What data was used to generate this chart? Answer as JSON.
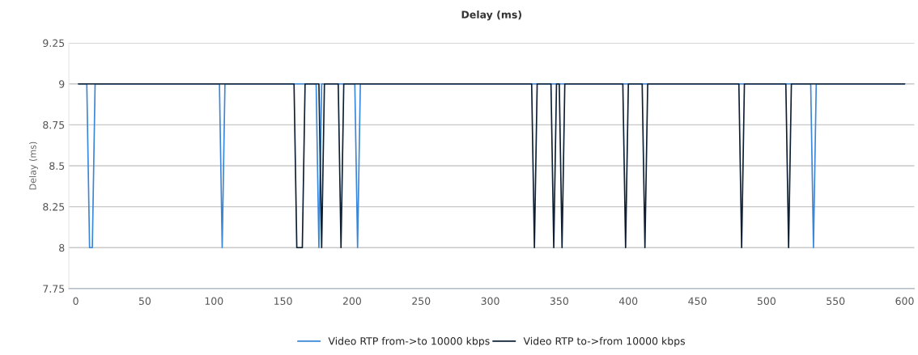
{
  "chart_data": {
    "type": "line",
    "title": "Delay (ms)",
    "ylabel": "Delay (ms)",
    "xlim": [
      -5,
      607
    ],
    "xticks": [
      0,
      50,
      100,
      150,
      200,
      250,
      300,
      350,
      400,
      450,
      500,
      550,
      600
    ],
    "ylim": [
      7.75,
      9.25
    ],
    "yticks": [
      7.75,
      8,
      8.25,
      8.5,
      8.75,
      9,
      9.25
    ],
    "grid": "y",
    "legend": "bottom",
    "line_style": "solid",
    "marker": "none",
    "series": [
      {
        "name": "Video RTP from->to 10000 kbps",
        "color": "#3a86d8",
        "x": [
          2,
          8,
          10,
          12,
          14,
          104,
          106,
          108,
          174,
          176,
          178,
          202,
          204,
          206,
          532,
          534,
          536,
          600
        ],
        "values": [
          9,
          9,
          8,
          8,
          9,
          9,
          8,
          9,
          9,
          8,
          9,
          9,
          8,
          9,
          9,
          8,
          9,
          9
        ]
      },
      {
        "name": "Video RTP to->from 10000 kbps",
        "color": "#0d1f33",
        "x": [
          2,
          158,
          160,
          162,
          164,
          166,
          176,
          178,
          180,
          190,
          192,
          194,
          330,
          332,
          334,
          344,
          346,
          348,
          350,
          352,
          354,
          396,
          398,
          400,
          410,
          412,
          414,
          480,
          482,
          484,
          514,
          516,
          518,
          600
        ],
        "values": [
          9,
          9,
          8,
          8,
          8,
          9,
          9,
          8,
          9,
          9,
          8,
          9,
          9,
          8,
          9,
          9,
          8,
          9,
          9,
          8,
          9,
          9,
          8,
          9,
          9,
          8,
          9,
          9,
          8,
          9,
          9,
          8,
          9,
          9
        ]
      }
    ]
  }
}
